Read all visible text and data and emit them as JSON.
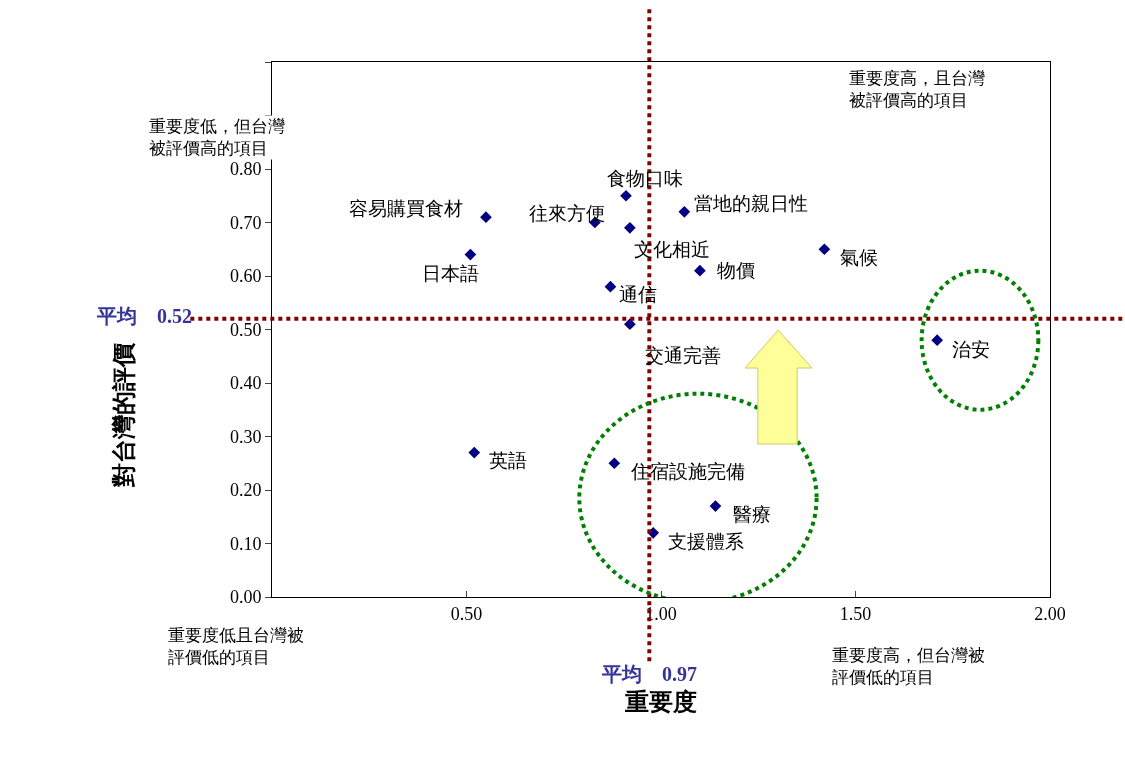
{
  "chart_data": {
    "type": "scatter",
    "xlabel": "重要度",
    "ylabel": "對台灣的評價",
    "x": [
      0.55,
      0.51,
      0.83,
      0.91,
      0.92,
      1.06,
      1.1,
      1.42,
      0.87,
      0.92,
      1.71,
      0.52,
      0.88,
      1.14,
      0.98
    ],
    "series": [
      {
        "color": "#000080",
        "values": [
          0.71,
          0.64,
          0.7,
          0.75,
          0.69,
          0.72,
          0.61,
          0.65,
          0.58,
          0.51,
          0.48,
          0.27,
          0.25,
          0.17,
          0.12
        ]
      }
    ],
    "marker": "diamond",
    "xlim": [
      0,
      2.0
    ],
    "xticks": [
      {
        "value": 0.5,
        "label": "0.50"
      },
      {
        "value": 1.0,
        "label": "1.00"
      },
      {
        "value": 1.5,
        "label": "1.50"
      },
      {
        "value": 2.0,
        "label": "2.00"
      }
    ],
    "ylim": [
      0,
      1.0
    ],
    "yticks": [
      {
        "value": 0,
        "label": "0.00"
      },
      {
        "value": 0.1,
        "label": "0.10"
      },
      {
        "value": 0.2,
        "label": "0.20"
      },
      {
        "value": 0.3,
        "label": "0.30"
      },
      {
        "value": 0.4,
        "label": "0.40"
      },
      {
        "value": 0.5,
        "label": "0.50"
      },
      {
        "value": 0.6,
        "label": "0.60"
      },
      {
        "value": 0.7,
        "label": "0.70"
      },
      {
        "value": 0.8,
        "label": "0.80"
      },
      {
        "value": 0.9,
        "label": null
      },
      {
        "value": 1.0,
        "label": null
      }
    ],
    "ref_lines": [
      {
        "axis": "y",
        "value": 0.52,
        "label": "平均　0.52",
        "color": "#800000",
        "line_style": "dotted"
      },
      {
        "axis": "x",
        "value": 0.97,
        "label": "平均　0.97",
        "color": "#800000",
        "line_style": "dotted"
      }
    ],
    "annotations": [
      "重要度低，但台灣被評價高的項目",
      "重要度高，且台灣被評價高的項目",
      "重要度低且台灣被評價低的項目",
      "重要度高，但台灣被評價低的項目",
      {
        "text": "容易購買食材",
        "x": 0.55,
        "y": 0.71
      },
      {
        "text": "日本語",
        "x": 0.51,
        "y": 0.64
      },
      {
        "text": "往來方便",
        "x": 0.83,
        "y": 0.7
      },
      {
        "text": "食物口味",
        "x": 0.91,
        "y": 0.75
      },
      {
        "text": "文化相近",
        "x": 0.92,
        "y": 0.69
      },
      {
        "text": "當地的親日性",
        "x": 1.06,
        "y": 0.72
      },
      {
        "text": "物價",
        "x": 1.1,
        "y": 0.61
      },
      {
        "text": "氣候",
        "x": 1.42,
        "y": 0.65
      },
      {
        "text": "通信",
        "x": 0.87,
        "y": 0.58
      },
      {
        "text": "交通完善",
        "x": 0.92,
        "y": 0.51
      },
      {
        "text": "治安",
        "x": 1.71,
        "y": 0.48
      },
      {
        "text": "英語",
        "x": 0.52,
        "y": 0.27
      },
      {
        "text": "住宿設施完備",
        "x": 0.88,
        "y": 0.25
      },
      {
        "text": "醫療",
        "x": 1.14,
        "y": 0.17
      },
      {
        "text": "支援體系",
        "x": 0.98,
        "y": 0.12
      }
    ]
  }
}
